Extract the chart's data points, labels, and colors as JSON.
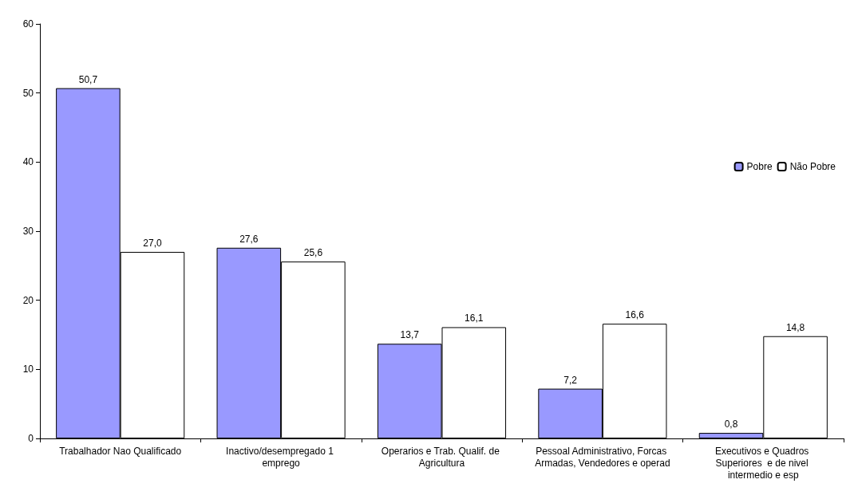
{
  "chart_data": {
    "type": "bar",
    "categories": [
      "Trabalhador Nao Qualificado",
      "Inactivo/desempregado 1 emprego",
      "Operarios e Trab. Qualif. de Agricultura",
      "Pessoal Administrativo, Forcas Armadas, Vendedores e operad",
      "Executivos e Quadros Superiores  e de nivel intermedio e esp"
    ],
    "series": [
      {
        "name": "Pobre",
        "color": "#9999ff",
        "values": [
          50.7,
          27.6,
          13.7,
          7.2,
          0.8
        ],
        "value_labels": [
          "50,7",
          "27,6",
          "13,7",
          "7,2",
          "0,8"
        ]
      },
      {
        "name": "Não Pobre",
        "color": "#ffffff",
        "values": [
          27.0,
          25.6,
          16.1,
          16.6,
          14.8
        ],
        "value_labels": [
          "27,0",
          "25,6",
          "16,1",
          "16,6",
          "14,8"
        ]
      }
    ],
    "ylim": [
      0,
      60
    ],
    "yticks": [
      0,
      10,
      20,
      30,
      40,
      50,
      60
    ],
    "grid": false,
    "legend": "right"
  }
}
